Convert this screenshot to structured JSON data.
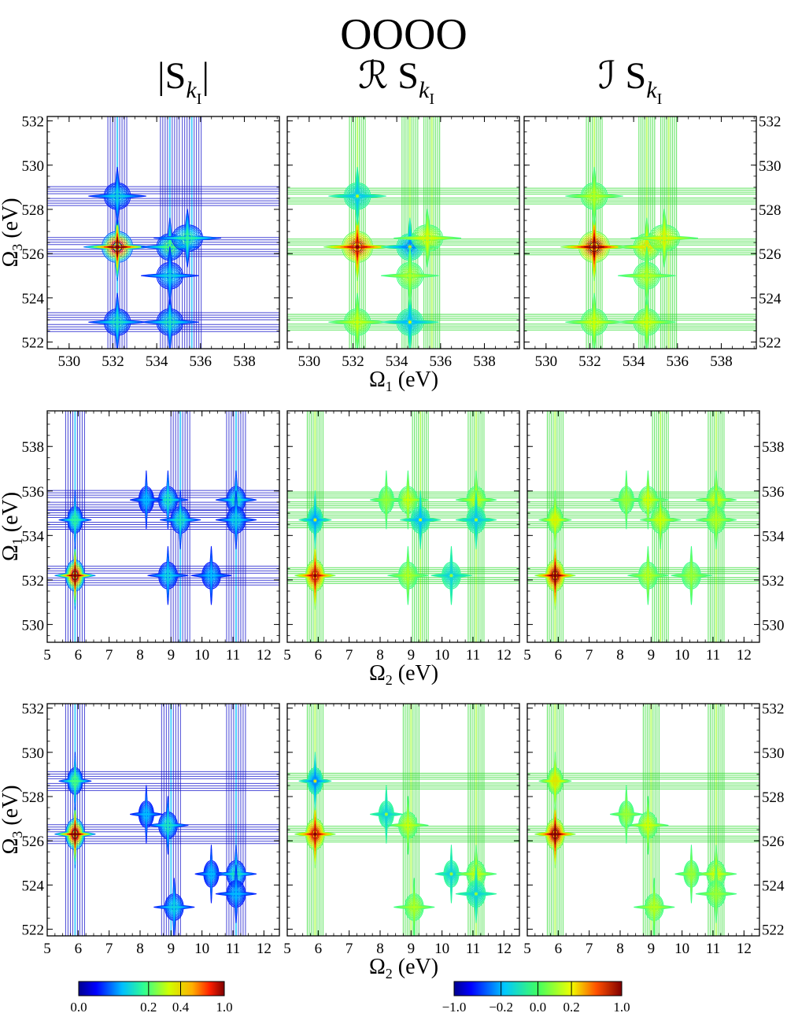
{
  "chart_data": {
    "type": "contour",
    "title": "OOOO",
    "column_headers": [
      {
        "main": "|S",
        "sub": "k",
        "subsub": "I",
        "suffix": "|"
      },
      {
        "main": "ℛ S",
        "sub": "k",
        "subsub": "I",
        "suffix": ""
      },
      {
        "main": "ℐ S",
        "sub": "k",
        "subsub": "I",
        "suffix": ""
      }
    ],
    "rows": [
      {
        "xlabel": {
          "sym": "Ω",
          "sub": "1",
          "unit": "(eV)"
        },
        "ylabel": {
          "sym": "Ω",
          "sub": "3",
          "unit": "(eV)"
        },
        "xlim": [
          529,
          539.6
        ],
        "ylim": [
          521.7,
          532.2
        ],
        "xticks": [
          "530",
          "532",
          "534",
          "536",
          "538"
        ],
        "xtick_values": [
          530,
          532,
          534,
          536,
          538
        ],
        "yticks": [
          "522",
          "524",
          "526",
          "528",
          "530",
          "532"
        ],
        "ytick_values": [
          522,
          524,
          526,
          528,
          530,
          532
        ],
        "peaks": [
          {
            "x": 532.2,
            "y": 526.3,
            "amp": 1.0,
            "sx": 0.35,
            "sy": 0.35
          },
          {
            "x": 534.6,
            "y": 526.3,
            "amp": 0.4,
            "sx": 0.3,
            "sy": 0.3
          },
          {
            "x": 535.4,
            "y": 526.7,
            "amp": 0.35,
            "sx": 0.35,
            "sy": 0.3
          },
          {
            "x": 532.2,
            "y": 528.6,
            "amp": 0.25,
            "sx": 0.3,
            "sy": 0.3
          },
          {
            "x": 532.2,
            "y": 522.9,
            "amp": 0.3,
            "sx": 0.3,
            "sy": 0.3
          },
          {
            "x": 534.6,
            "y": 522.9,
            "amp": 0.3,
            "sx": 0.3,
            "sy": 0.3
          },
          {
            "x": 534.6,
            "y": 525.0,
            "amp": 0.25,
            "sx": 0.3,
            "sy": 0.3
          }
        ],
        "v_ridges": [
          532.2,
          534.6,
          535.6
        ],
        "h_ridges": [
          526.3,
          528.6,
          522.9
        ]
      },
      {
        "xlabel": {
          "sym": "Ω",
          "sub": "2",
          "unit": "(eV)"
        },
        "ylabel": {
          "sym": "Ω",
          "sub": "1",
          "unit": "(eV)"
        },
        "xlim": [
          5,
          12.5
        ],
        "ylim": [
          529.2,
          539.6
        ],
        "xticks": [
          "5",
          "6",
          "7",
          "8",
          "9",
          "10",
          "11",
          "12"
        ],
        "xtick_values": [
          5,
          6,
          7,
          8,
          9,
          10,
          11,
          12
        ],
        "yticks": [
          "530",
          "532",
          "534",
          "536",
          "538"
        ],
        "ytick_values": [
          530,
          532,
          534,
          536,
          538
        ],
        "peaks": [
          {
            "x": 5.9,
            "y": 532.2,
            "amp": 1.0,
            "sx": 0.15,
            "sy": 0.35
          },
          {
            "x": 5.9,
            "y": 534.7,
            "amp": 0.35,
            "sx": 0.12,
            "sy": 0.3
          },
          {
            "x": 8.9,
            "y": 535.6,
            "amp": 0.3,
            "sx": 0.15,
            "sy": 0.3
          },
          {
            "x": 9.3,
            "y": 534.7,
            "amp": 0.3,
            "sx": 0.15,
            "sy": 0.3
          },
          {
            "x": 11.1,
            "y": 535.6,
            "amp": 0.3,
            "sx": 0.15,
            "sy": 0.3
          },
          {
            "x": 11.1,
            "y": 534.7,
            "amp": 0.25,
            "sx": 0.15,
            "sy": 0.3
          },
          {
            "x": 8.9,
            "y": 532.2,
            "amp": 0.25,
            "sx": 0.15,
            "sy": 0.3
          },
          {
            "x": 10.3,
            "y": 532.2,
            "amp": 0.2,
            "sx": 0.15,
            "sy": 0.3
          },
          {
            "x": 8.2,
            "y": 535.6,
            "amp": 0.2,
            "sx": 0.12,
            "sy": 0.3
          }
        ],
        "v_ridges": [
          5.9,
          9.3,
          11.1
        ],
        "h_ridges": [
          532.2,
          534.7,
          535.6
        ]
      },
      {
        "xlabel": {
          "sym": "Ω",
          "sub": "2",
          "unit": "(eV)"
        },
        "ylabel": {
          "sym": "Ω",
          "sub": "3",
          "unit": "(eV)"
        },
        "xlim": [
          5,
          12.5
        ],
        "ylim": [
          521.7,
          532.2
        ],
        "xticks": [
          "5",
          "6",
          "7",
          "8",
          "9",
          "10",
          "11",
          "12"
        ],
        "xtick_values": [
          5,
          6,
          7,
          8,
          9,
          10,
          11,
          12
        ],
        "yticks": [
          "522",
          "524",
          "526",
          "528",
          "530",
          "532"
        ],
        "ytick_values": [
          522,
          524,
          526,
          528,
          530,
          532
        ],
        "peaks": [
          {
            "x": 5.9,
            "y": 526.3,
            "amp": 1.0,
            "sx": 0.15,
            "sy": 0.35
          },
          {
            "x": 5.9,
            "y": 528.7,
            "amp": 0.4,
            "sx": 0.12,
            "sy": 0.3
          },
          {
            "x": 8.9,
            "y": 526.7,
            "amp": 0.3,
            "sx": 0.15,
            "sy": 0.3
          },
          {
            "x": 8.2,
            "y": 527.2,
            "amp": 0.2,
            "sx": 0.12,
            "sy": 0.3
          },
          {
            "x": 9.1,
            "y": 523.0,
            "amp": 0.25,
            "sx": 0.15,
            "sy": 0.3
          },
          {
            "x": 10.3,
            "y": 524.5,
            "amp": 0.2,
            "sx": 0.12,
            "sy": 0.3
          },
          {
            "x": 11.1,
            "y": 524.5,
            "amp": 0.3,
            "sx": 0.15,
            "sy": 0.3
          },
          {
            "x": 11.1,
            "y": 523.6,
            "amp": 0.2,
            "sx": 0.15,
            "sy": 0.3
          }
        ],
        "v_ridges": [
          5.9,
          9.0,
          11.1
        ],
        "h_ridges": [
          526.3,
          528.7
        ]
      }
    ],
    "colorbars": [
      {
        "name": "magnitude",
        "ticks": [
          "0.0",
          "0.2",
          "0.4",
          "1.0"
        ],
        "tick_values": [
          0.0,
          0.2,
          0.4,
          1.0
        ],
        "range": [
          0,
          1
        ]
      },
      {
        "name": "signed",
        "ticks": [
          "−1.0",
          "−0.2",
          "0.0",
          "0.2",
          "1.0"
        ],
        "tick_values": [
          -1.0,
          -0.2,
          0.0,
          0.2,
          1.0
        ],
        "range": [
          -1,
          1
        ]
      }
    ],
    "colors": {
      "line_magnitude": "#1a1acc",
      "axis": "#000000",
      "background": "#ffffff"
    }
  }
}
